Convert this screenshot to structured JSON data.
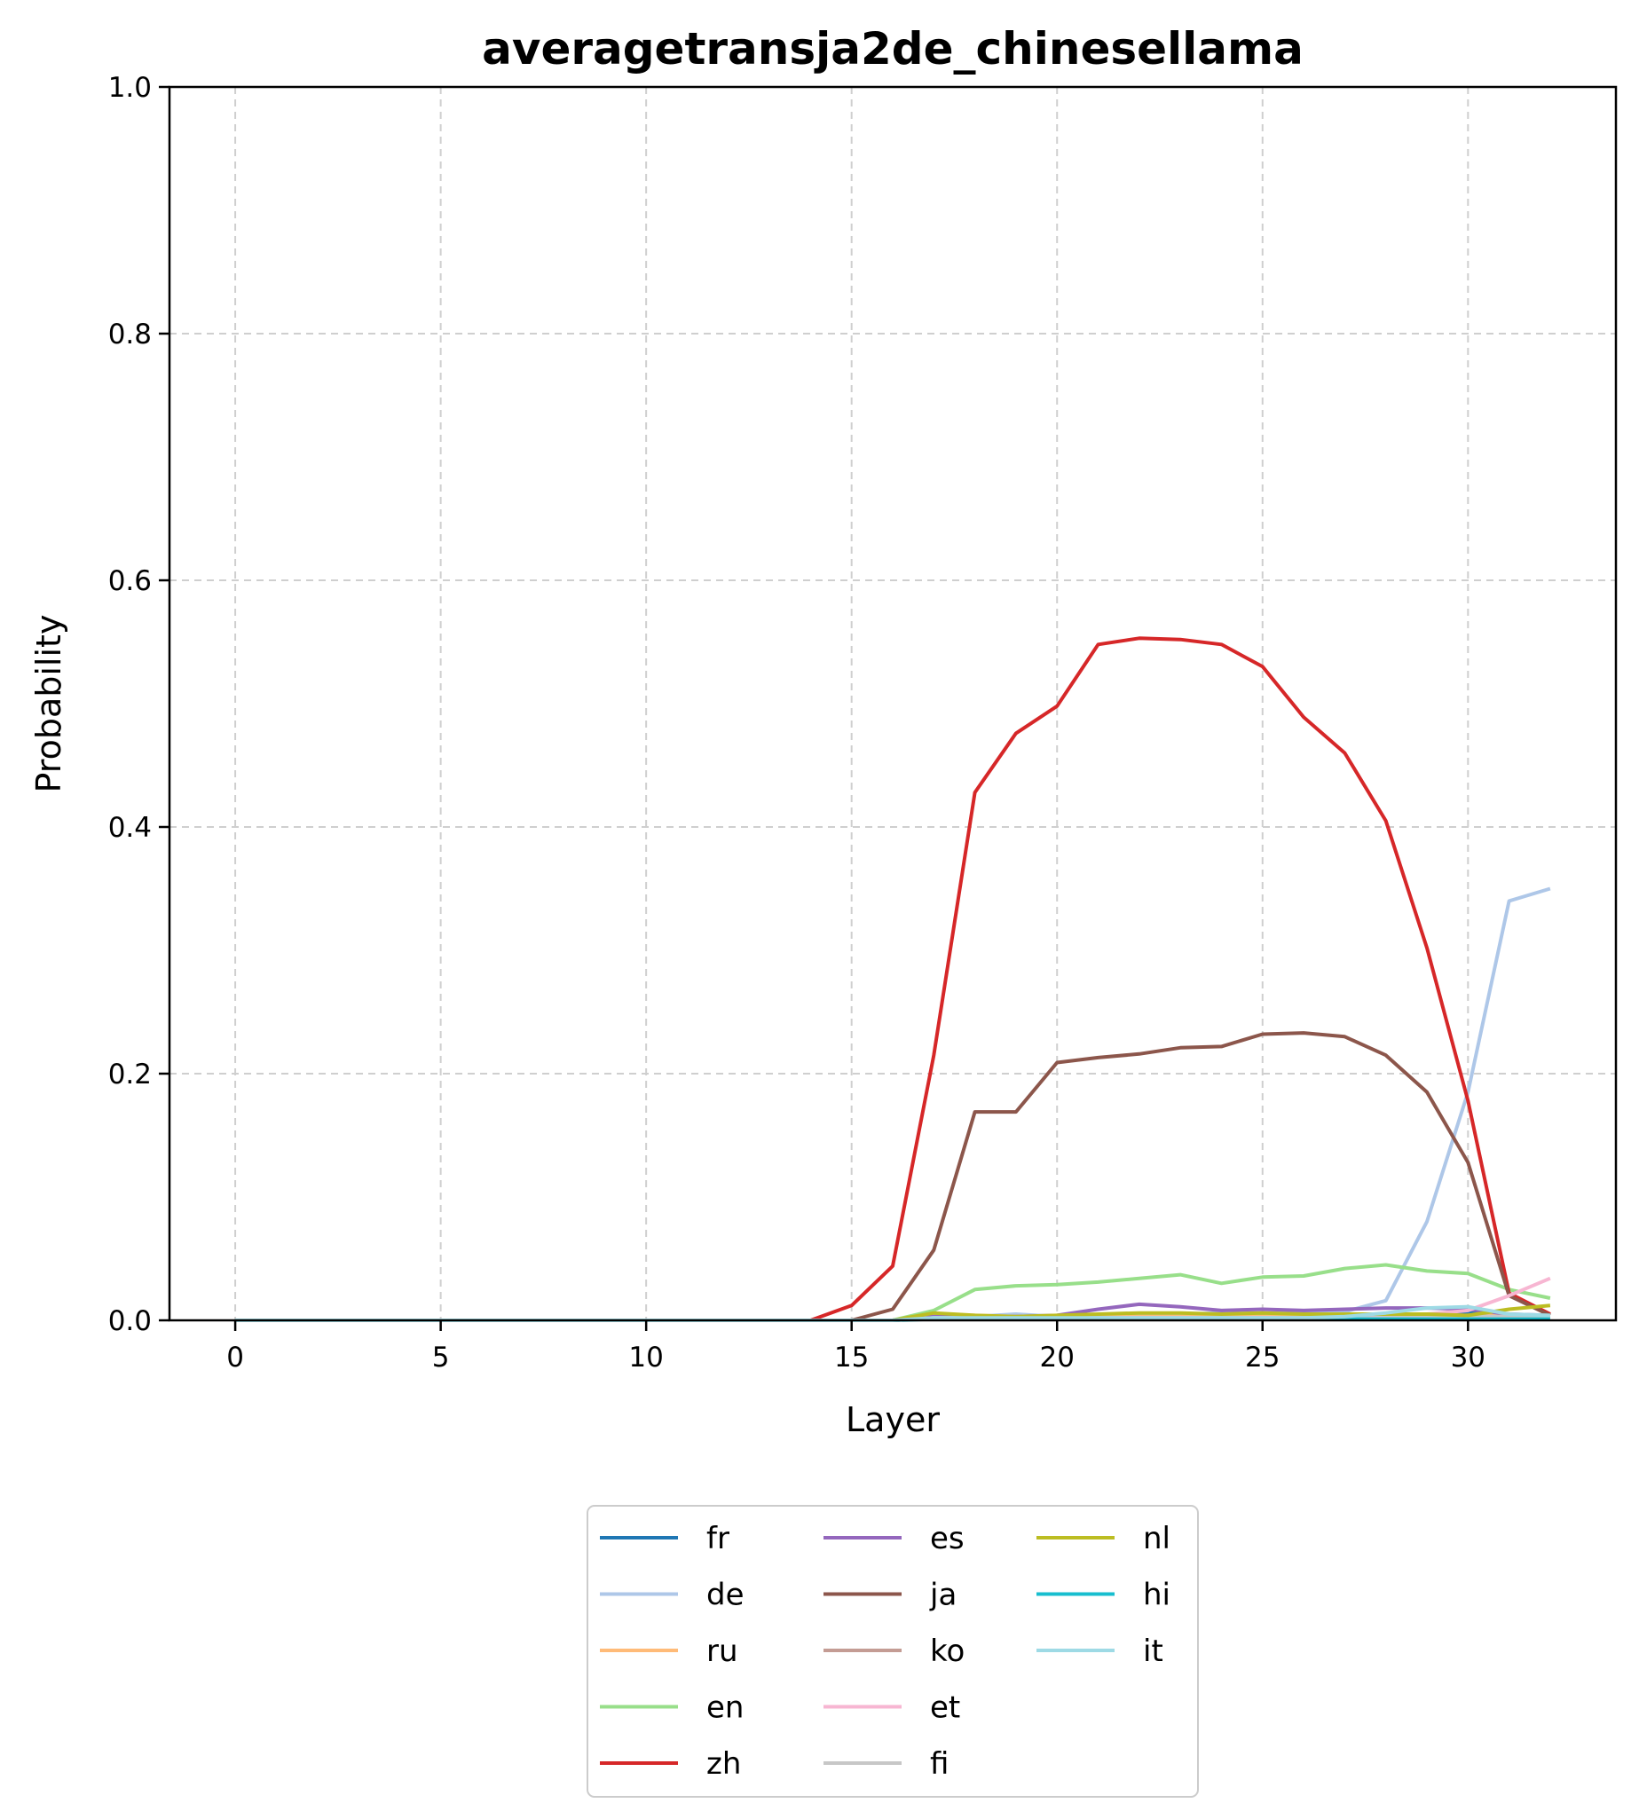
{
  "chart_data": {
    "type": "line",
    "title": "averagetransja2de_chinesellama",
    "xlabel": "Layer",
    "ylabel": "Probability",
    "xlim": [
      -1.6,
      33.6
    ],
    "ylim": [
      0,
      1
    ],
    "xticks": [
      0,
      5,
      10,
      15,
      20,
      25,
      30
    ],
    "yticks": [
      0.0,
      0.2,
      0.4,
      0.6,
      0.8,
      1.0
    ],
    "ytick_labels": [
      "0.0",
      "0.2",
      "0.4",
      "0.6",
      "0.8",
      "1.0"
    ],
    "grid": true,
    "legend": {
      "placement": "bottom-center",
      "columns": 3
    },
    "x": [
      0,
      1,
      2,
      3,
      4,
      5,
      6,
      7,
      8,
      9,
      10,
      11,
      12,
      13,
      14,
      15,
      16,
      17,
      18,
      19,
      20,
      21,
      22,
      23,
      24,
      25,
      26,
      27,
      28,
      29,
      30,
      31,
      32
    ],
    "series": [
      {
        "name": "fr",
        "color": "#1f77b4",
        "values": [
          0,
          0,
          0,
          0,
          0,
          0,
          0,
          0,
          0,
          0,
          0,
          0,
          0,
          0,
          0,
          0,
          0,
          0.002,
          0.002,
          0.002,
          0.002,
          0.002,
          0.003,
          0.003,
          0.003,
          0.003,
          0.003,
          0.003,
          0.003,
          0.004,
          0.006,
          0.004,
          0.004
        ]
      },
      {
        "name": "de",
        "color": "#aec7e8",
        "values": [
          0,
          0,
          0,
          0,
          0,
          0,
          0,
          0,
          0,
          0,
          0,
          0,
          0,
          0,
          0,
          0,
          0,
          0.003,
          0.003,
          0.005,
          0.003,
          0.004,
          0.005,
          0.005,
          0.006,
          0.006,
          0.006,
          0.007,
          0.016,
          0.08,
          0.185,
          0.34,
          0.35
        ]
      },
      {
        "name": "ru",
        "color": "#ffbb78",
        "values": [
          0,
          0,
          0,
          0,
          0,
          0,
          0,
          0,
          0,
          0,
          0,
          0,
          0,
          0,
          0,
          0,
          0,
          0.004,
          0.004,
          0.003,
          0.003,
          0.003,
          0.003,
          0.003,
          0.003,
          0.003,
          0.003,
          0.003,
          0.003,
          0.003,
          0.004,
          0.004,
          0.004
        ]
      },
      {
        "name": "en",
        "color": "#98df8a",
        "values": [
          0,
          0,
          0,
          0,
          0,
          0,
          0,
          0,
          0,
          0,
          0,
          0,
          0,
          0,
          0,
          0,
          0,
          0.008,
          0.025,
          0.028,
          0.029,
          0.031,
          0.034,
          0.037,
          0.03,
          0.035,
          0.036,
          0.042,
          0.045,
          0.04,
          0.038,
          0.025,
          0.018
        ]
      },
      {
        "name": "zh",
        "color": "#d62728",
        "values": [
          0,
          0,
          0,
          0,
          0,
          0,
          0,
          0,
          0,
          0,
          0,
          0,
          0,
          0,
          0,
          0.012,
          0.044,
          0.215,
          0.428,
          0.476,
          0.498,
          0.548,
          0.553,
          0.552,
          0.548,
          0.53,
          0.489,
          0.46,
          0.405,
          0.302,
          0.178,
          0.022,
          0.005
        ]
      },
      {
        "name": "es",
        "color": "#9467bd",
        "values": [
          0,
          0,
          0,
          0,
          0,
          0,
          0,
          0,
          0,
          0,
          0,
          0,
          0,
          0,
          0,
          0,
          0,
          0.003,
          0.003,
          0.003,
          0.004,
          0.009,
          0.013,
          0.011,
          0.008,
          0.009,
          0.008,
          0.009,
          0.01,
          0.01,
          0.009,
          0.005,
          0.004
        ]
      },
      {
        "name": "ja",
        "color": "#8c564b",
        "values": [
          0,
          0,
          0,
          0,
          0,
          0,
          0,
          0,
          0,
          0,
          0,
          0,
          0,
          0,
          0,
          0,
          0.009,
          0.057,
          0.169,
          0.169,
          0.209,
          0.213,
          0.216,
          0.221,
          0.222,
          0.232,
          0.233,
          0.23,
          0.215,
          0.185,
          0.128,
          0.02,
          0.004
        ]
      },
      {
        "name": "ko",
        "color": "#c49c94",
        "values": [
          0,
          0,
          0,
          0,
          0,
          0,
          0,
          0,
          0,
          0,
          0,
          0,
          0,
          0,
          0,
          0,
          0,
          0.002,
          0.002,
          0.002,
          0.002,
          0.002,
          0.002,
          0.002,
          0.002,
          0.002,
          0.002,
          0.002,
          0.002,
          0.002,
          0.003,
          0.003,
          0.003
        ]
      },
      {
        "name": "et",
        "color": "#f7b6d2",
        "values": [
          0,
          0,
          0,
          0,
          0,
          0,
          0,
          0,
          0,
          0,
          0,
          0,
          0,
          0,
          0,
          0,
          0,
          0.002,
          0.002,
          0.002,
          0.002,
          0.002,
          0.002,
          0.002,
          0.002,
          0.002,
          0.002,
          0.002,
          0.003,
          0.005,
          0.008,
          0.02,
          0.034
        ]
      },
      {
        "name": "fi",
        "color": "#c7c7c7",
        "values": [
          0,
          0,
          0,
          0,
          0,
          0,
          0,
          0,
          0,
          0,
          0,
          0,
          0,
          0,
          0,
          0,
          0,
          0.002,
          0.002,
          0.002,
          0.002,
          0.002,
          0.002,
          0.002,
          0.002,
          0.002,
          0.002,
          0.002,
          0.002,
          0.003,
          0.003,
          0.003,
          0.003
        ]
      },
      {
        "name": "nl",
        "color": "#bcbd22",
        "values": [
          0,
          0,
          0,
          0,
          0,
          0,
          0,
          0,
          0,
          0,
          0,
          0,
          0,
          0,
          0,
          0,
          0,
          0.006,
          0.004,
          0.003,
          0.004,
          0.005,
          0.006,
          0.006,
          0.005,
          0.006,
          0.005,
          0.005,
          0.005,
          0.005,
          0.004,
          0.009,
          0.012
        ]
      },
      {
        "name": "hi",
        "color": "#17becf",
        "values": [
          0,
          0,
          0,
          0,
          0,
          0,
          0,
          0,
          0,
          0,
          0,
          0,
          0,
          0,
          0,
          0,
          0,
          0.001,
          0.001,
          0.001,
          0.001,
          0.001,
          0.001,
          0.001,
          0.001,
          0.001,
          0.001,
          0.001,
          0.001,
          0.001,
          0.001,
          0.001,
          0.001
        ]
      },
      {
        "name": "it",
        "color": "#9edae5",
        "values": [
          0,
          0,
          0,
          0,
          0,
          0,
          0,
          0,
          0,
          0,
          0,
          0,
          0,
          0,
          0,
          0,
          0,
          0.002,
          0.002,
          0.002,
          0.002,
          0.002,
          0.002,
          0.002,
          0.002,
          0.002,
          0.002,
          0.003,
          0.006,
          0.01,
          0.011,
          0.005,
          0.004
        ]
      }
    ]
  }
}
